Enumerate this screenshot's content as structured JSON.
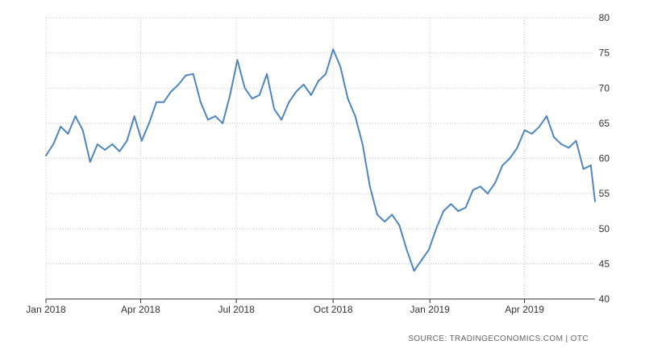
{
  "chart_data": {
    "type": "line",
    "title": "",
    "xlabel": "",
    "ylabel": "",
    "ylim": [
      40,
      80
    ],
    "xlim": [
      "2018-01-01",
      "2019-06-07"
    ],
    "y_ticks": [
      40,
      45,
      50,
      55,
      60,
      65,
      70,
      75,
      80
    ],
    "x_ticks": [
      {
        "date": "2018-01-01",
        "label": "Jan 2018"
      },
      {
        "date": "2018-04-01",
        "label": "Apr 2018"
      },
      {
        "date": "2018-07-01",
        "label": "Jul 2018"
      },
      {
        "date": "2018-10-01",
        "label": "Oct 2018"
      },
      {
        "date": "2019-01-01",
        "label": "Jan 2019"
      },
      {
        "date": "2019-04-01",
        "label": "Apr 2019"
      }
    ],
    "grid": true,
    "y_axis_side": "right",
    "line_color": "#4f86bd",
    "source_note": "SOURCE: TRADINGECONOMICS.COM  |  OTC",
    "series": [
      {
        "x": [
          "2018-01-01",
          "2018-01-08",
          "2018-01-15",
          "2018-01-22",
          "2018-01-29",
          "2018-02-05",
          "2018-02-12",
          "2018-02-19",
          "2018-02-26",
          "2018-03-05",
          "2018-03-12",
          "2018-03-19",
          "2018-03-26",
          "2018-04-02",
          "2018-04-09",
          "2018-04-16",
          "2018-04-23",
          "2018-04-30",
          "2018-05-07",
          "2018-05-14",
          "2018-05-21",
          "2018-05-28",
          "2018-06-04",
          "2018-06-11",
          "2018-06-18",
          "2018-06-25",
          "2018-07-02",
          "2018-07-09",
          "2018-07-16",
          "2018-07-23",
          "2018-07-30",
          "2018-08-06",
          "2018-08-13",
          "2018-08-20",
          "2018-08-27",
          "2018-09-03",
          "2018-09-10",
          "2018-09-17",
          "2018-09-24",
          "2018-10-01",
          "2018-10-08",
          "2018-10-15",
          "2018-10-22",
          "2018-10-29",
          "2018-11-05",
          "2018-11-12",
          "2018-11-19",
          "2018-11-26",
          "2018-12-03",
          "2018-12-10",
          "2018-12-17",
          "2018-12-24",
          "2018-12-31",
          "2019-01-07",
          "2019-01-14",
          "2019-01-21",
          "2019-01-28",
          "2019-02-04",
          "2019-02-11",
          "2019-02-18",
          "2019-02-25",
          "2019-03-04",
          "2019-03-11",
          "2019-03-18",
          "2019-03-25",
          "2019-04-01",
          "2019-04-08",
          "2019-04-15",
          "2019-04-22",
          "2019-04-29",
          "2019-05-06",
          "2019-05-13",
          "2019-05-20",
          "2019-05-27",
          "2019-06-03",
          "2019-06-07"
        ],
        "values": [
          60.4,
          62.0,
          64.5,
          63.5,
          66.0,
          64.0,
          59.5,
          62.0,
          61.2,
          62.0,
          61.0,
          62.5,
          66.0,
          62.5,
          65.0,
          68.0,
          68.0,
          69.5,
          70.5,
          71.8,
          72.0,
          68.0,
          65.5,
          66.0,
          65.0,
          69.0,
          74.0,
          70.0,
          68.5,
          69.0,
          72.0,
          67.0,
          65.5,
          68.0,
          69.5,
          70.5,
          69.0,
          71.0,
          72.0,
          75.5,
          73.0,
          68.5,
          66.0,
          62.0,
          56.0,
          52.0,
          51.0,
          52.0,
          50.5,
          47.0,
          44.0,
          45.5,
          47.0,
          50.0,
          52.5,
          53.5,
          52.5,
          53.0,
          55.5,
          56.0,
          55.0,
          56.5,
          59.0,
          60.0,
          61.5,
          64.0,
          63.5,
          64.5,
          66.0,
          63.0,
          62.0,
          61.5,
          62.5,
          58.5,
          59.0,
          53.9
        ]
      }
    ]
  }
}
